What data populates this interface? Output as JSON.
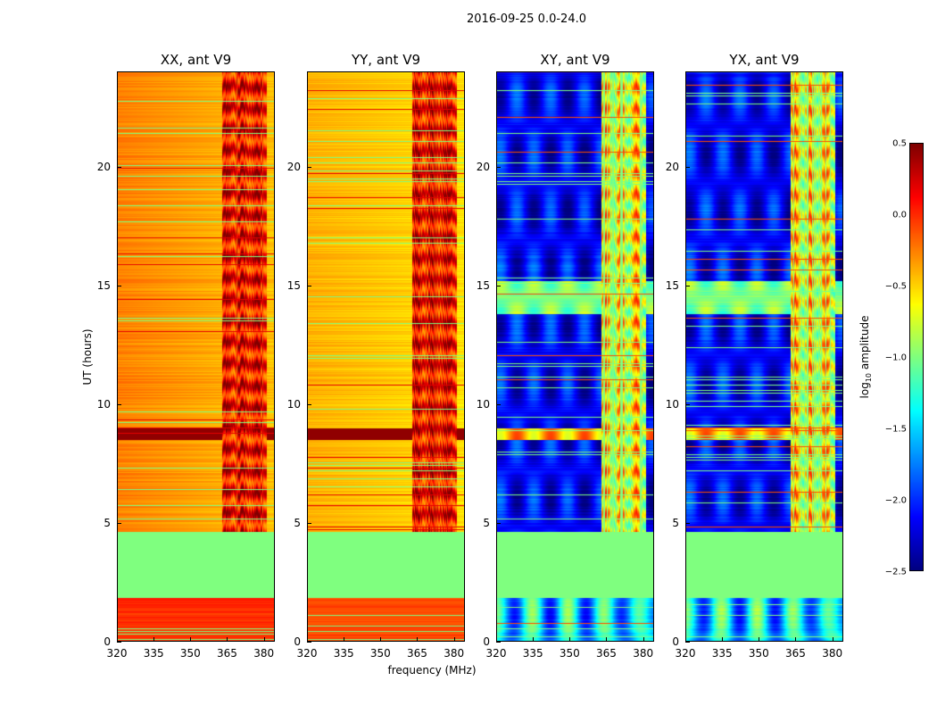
{
  "chart_data": {
    "type": "heatmap",
    "title": "2016-09-25 0.0-24.0",
    "xlabel": "frequency (MHz)",
    "ylabel": "UT (hours)",
    "xlim": [
      320,
      384.5
    ],
    "ylim": [
      0,
      24
    ],
    "xticks": [
      "320",
      "335",
      "350",
      "365",
      "380"
    ],
    "yticks": [
      "0",
      "5",
      "10",
      "15",
      "20"
    ],
    "colormap": "jet",
    "colorbar": {
      "label": "log10 amplitude",
      "label_main": "log",
      "label_sub": "10",
      "label_rest": " amplitude",
      "range": [
        -2.5,
        0.5
      ],
      "ticks": [
        "0.5",
        "0.0",
        "−0.5",
        "−1.0",
        "−1.5",
        "−2.0",
        "−2.5"
      ]
    },
    "flagged_interval_hours": [
      1.85,
      4.65
    ],
    "flagged_value": -1.0,
    "rfi_band_mhz": [
      363,
      381
    ],
    "panels": [
      {
        "title": "XX, ant V9",
        "baseline_low_freq": -0.25,
        "baseline_high_freq": -0.45,
        "early_level": 0.0,
        "rfi_level": 0.1
      },
      {
        "title": "YY, ant V9",
        "baseline_low_freq": -0.4,
        "baseline_high_freq": -0.55,
        "early_level": -0.1,
        "rfi_level": 0.1
      },
      {
        "title": "XY, ant V9",
        "baseline_low_freq": -2.1,
        "baseline_high_freq": -2.2,
        "early_level": -1.5,
        "rfi_level": -0.6
      },
      {
        "title": "YX, ant V9",
        "baseline_low_freq": -2.1,
        "baseline_high_freq": -2.2,
        "early_level": -1.5,
        "rfi_level": -0.6
      }
    ]
  }
}
